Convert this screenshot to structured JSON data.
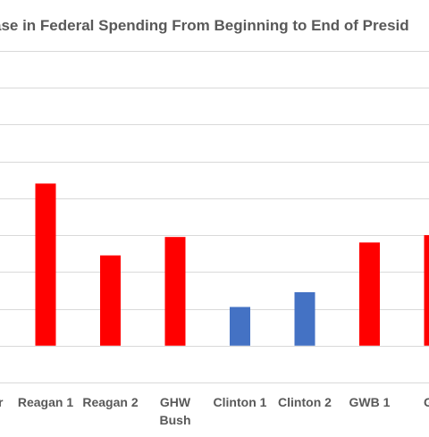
{
  "chart_data": {
    "type": "bar",
    "title": "ase in Federal Spending From Beginning to End of Presid",
    "xlabel": "",
    "ylabel": "",
    "categories": [
      [
        "Reagan 1"
      ],
      [
        "Reagan 2"
      ],
      [
        "GHW",
        "Bush"
      ],
      [
        "Clinton 1"
      ],
      [
        "Clinton 2"
      ],
      [
        "GWB 1"
      ],
      [
        "GW"
      ]
    ],
    "values": [
      44,
      24.5,
      29.5,
      10.5,
      14.5,
      28,
      30
    ],
    "bar_colors": [
      "#ff0000",
      "#ff0000",
      "#ff0000",
      "#4472c4",
      "#4472c4",
      "#ff0000",
      "#ff0000"
    ],
    "ylim": [
      -10,
      80
    ],
    "gridline_values": [
      -10,
      0,
      10,
      20,
      30,
      40,
      50,
      60,
      70,
      80
    ],
    "grid": true,
    "legend": "none",
    "visible_category_range": "cropped at both edges"
  }
}
